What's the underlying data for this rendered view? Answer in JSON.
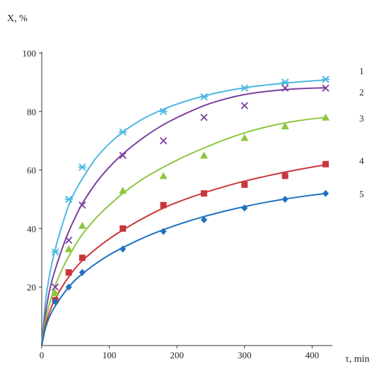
{
  "chart_data": {
    "type": "scatter",
    "xlabel": "τ, min",
    "ylabel": "X, %",
    "xlim": [
      0,
      430
    ],
    "ylim": [
      0,
      100
    ],
    "x_ticks": [
      0,
      100,
      200,
      300,
      400
    ],
    "y_ticks": [
      20,
      40,
      60,
      80,
      100
    ],
    "x_tick_labels": [
      "0",
      "100",
      "200",
      "300",
      "400"
    ],
    "y_tick_labels": [
      "20",
      "40",
      "60",
      "80",
      "100"
    ],
    "grid": false,
    "legend": "curve numbers at right end of lines",
    "series": [
      {
        "label": "1",
        "marker": "asterisk",
        "color": "#4db8e0",
        "x": [
          20,
          40,
          60,
          120,
          180,
          240,
          300,
          360,
          420
        ],
        "y": [
          32,
          50,
          61,
          73,
          80,
          85,
          88,
          90,
          91
        ],
        "curve_x": [
          0,
          5,
          10,
          15,
          20,
          30,
          40,
          50,
          60,
          80,
          100,
          120,
          150,
          180,
          210,
          240,
          270,
          300,
          330,
          360,
          390,
          420
        ],
        "curve_y": [
          0,
          14,
          22,
          28,
          33,
          41,
          48,
          53,
          57,
          64,
          69,
          73,
          77.5,
          80.8,
          83.3,
          85.3,
          86.9,
          88.1,
          89,
          89.7,
          90.3,
          90.8
        ]
      },
      {
        "label": "2",
        "marker": "x",
        "color": "#7b3f9e",
        "x": [
          20,
          40,
          60,
          120,
          180,
          240,
          300,
          360,
          420
        ],
        "y": [
          20,
          36,
          48,
          65,
          70,
          78,
          82,
          88,
          88
        ],
        "curve_x": [
          0,
          5,
          10,
          15,
          20,
          30,
          40,
          50,
          60,
          80,
          100,
          120,
          150,
          180,
          210,
          240,
          270,
          300,
          330,
          360,
          390,
          420
        ],
        "curve_y": [
          0,
          10,
          17,
          22,
          26,
          33,
          39,
          44,
          48.5,
          55.5,
          61,
          65.5,
          71,
          75.5,
          79,
          82,
          84.2,
          85.8,
          86.8,
          87.5,
          87.9,
          88.1
        ]
      },
      {
        "label": "3",
        "marker": "triangle",
        "color": "#8dc63f",
        "x": [
          20,
          40,
          60,
          120,
          180,
          240,
          300,
          360,
          420
        ],
        "y": [
          18,
          33,
          41,
          53,
          58,
          65,
          71,
          75,
          78
        ],
        "curve_x": [
          0,
          5,
          10,
          15,
          20,
          30,
          40,
          50,
          60,
          80,
          100,
          120,
          150,
          180,
          210,
          240,
          270,
          300,
          330,
          360,
          390,
          420
        ],
        "curve_y": [
          0,
          8,
          13,
          17,
          20.5,
          26,
          30.5,
          34.5,
          38,
          43.5,
          48,
          52,
          57,
          61,
          64.5,
          67.5,
          70.3,
          72.7,
          74.6,
          76.1,
          77.2,
          78
        ]
      },
      {
        "label": "4",
        "marker": "square",
        "color": "#c8373b",
        "x": [
          20,
          40,
          60,
          120,
          180,
          240,
          300,
          360,
          420
        ],
        "y": [
          15.5,
          25,
          30,
          40,
          48,
          52,
          55,
          58,
          62
        ],
        "curve_x": [
          0,
          5,
          10,
          15,
          20,
          30,
          40,
          50,
          60,
          80,
          100,
          120,
          150,
          180,
          210,
          240,
          270,
          300,
          330,
          360,
          390,
          420
        ],
        "curve_y": [
          0,
          6.5,
          10.5,
          13.5,
          16,
          20,
          23.5,
          26.5,
          29,
          33,
          36.5,
          39.5,
          43.5,
          47,
          49.8,
          52.2,
          54.3,
          56.2,
          57.8,
          59.3,
          60.6,
          61.8
        ]
      },
      {
        "label": "5",
        "marker": "diamond",
        "color": "#1f72bf",
        "x": [
          20,
          40,
          60,
          120,
          180,
          240,
          300,
          360,
          420
        ],
        "y": [
          15,
          20,
          25,
          33,
          39,
          43,
          47,
          50,
          52
        ],
        "curve_x": [
          0,
          5,
          10,
          15,
          20,
          30,
          40,
          50,
          60,
          80,
          100,
          120,
          150,
          180,
          210,
          240,
          270,
          300,
          330,
          360,
          390,
          420
        ],
        "curve_y": [
          0,
          5.5,
          9,
          11.5,
          13.5,
          17,
          20,
          22.5,
          24.5,
          28,
          31,
          33.5,
          36.8,
          39.6,
          42,
          44.1,
          45.9,
          47.5,
          48.9,
          50.1,
          51.1,
          52
        ]
      }
    ]
  }
}
